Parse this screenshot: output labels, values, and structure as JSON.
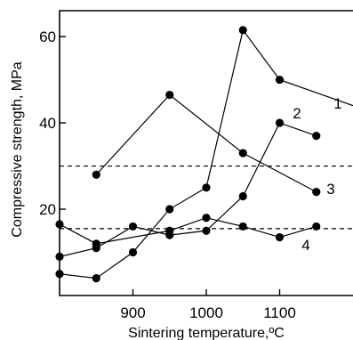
{
  "chart_data": {
    "type": "line",
    "xlabel": "Sintering temperature,ºC",
    "ylabel": "Compressive strength, MPa",
    "xlim": [
      800,
      1200
    ],
    "ylim": [
      0,
      66
    ],
    "x_ticks": [
      900,
      1000,
      1100
    ],
    "y_ticks": [
      20,
      40,
      60
    ],
    "series": [
      {
        "name": "1",
        "x": [
          850,
          950,
          1050,
          1150
        ],
        "y": [
          28,
          46.5,
          33,
          24
        ]
      },
      {
        "name": "2",
        "x": [
          800,
          850,
          900,
          950,
          1000,
          1050,
          1100,
          1150
        ],
        "y": [
          9,
          11,
          16,
          14,
          15,
          23,
          40,
          37
        ]
      },
      {
        "name": "3",
        "x": [
          800,
          850,
          900,
          950,
          1000,
          1050,
          1100,
          1200
        ],
        "y": [
          5,
          4,
          10,
          20,
          25,
          61.5,
          50,
          44
        ]
      },
      {
        "name": "4",
        "x": [
          800,
          850,
          950,
          1000,
          1050,
          1100,
          1150
        ],
        "y": [
          16.5,
          12,
          15,
          18,
          16,
          13.5,
          16
        ]
      }
    ],
    "reference_lines": [
      30,
      15.5
    ],
    "grid": false
  }
}
